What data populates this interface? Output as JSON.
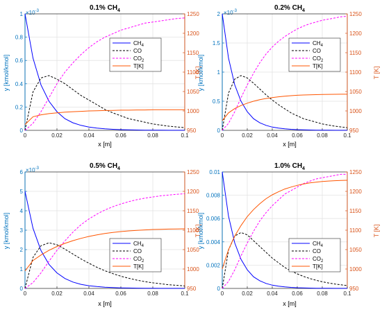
{
  "chart_data": [
    {
      "type": "line",
      "title": "0.1% CH",
      "title_sub": "4",
      "xlabel": "x [m]",
      "ylabel_left": "y [kmol/kmol]",
      "ylabel_right": "T [K]",
      "y_exponent": "×10",
      "y_exponent_power": "-3",
      "xlim": [
        0,
        0.1
      ],
      "ylim_left": [
        0,
        1
      ],
      "ylim_right": [
        950,
        1250
      ],
      "x_ticks": [
        "0",
        "0.02",
        "0.04",
        "0.06",
        "0.08",
        "0.1"
      ],
      "y_ticks_left": [
        "0",
        "0.2",
        "0.4",
        "0.6",
        "0.8",
        "1"
      ],
      "y_ticks_right": [
        "950",
        "1000",
        "1050",
        "1100",
        "1150",
        "1200",
        "1250"
      ],
      "legend_position": "middle-right",
      "x": [
        0,
        0.005,
        0.01,
        0.015,
        0.02,
        0.025,
        0.03,
        0.035,
        0.04,
        0.045,
        0.05,
        0.055,
        0.06,
        0.065,
        0.07,
        0.075,
        0.08,
        0.085,
        0.09,
        0.095,
        0.1
      ],
      "series": [
        {
          "name": "CH4",
          "color": "#0000ff",
          "dash": "solid",
          "axis": "left",
          "values": [
            1.0,
            0.62,
            0.39,
            0.25,
            0.16,
            0.1,
            0.065,
            0.043,
            0.028,
            0.019,
            0.013,
            0.009,
            0.006,
            0.004,
            0.003,
            0.002,
            0.0015,
            0.001,
            0.0007,
            0.0005,
            0.0003
          ]
        },
        {
          "name": "CO",
          "color": "#000000",
          "dash": "dashed",
          "axis": "left",
          "values": [
            0.0,
            0.33,
            0.45,
            0.47,
            0.44,
            0.4,
            0.35,
            0.3,
            0.26,
            0.22,
            0.18,
            0.15,
            0.125,
            0.1,
            0.085,
            0.07,
            0.055,
            0.045,
            0.036,
            0.029,
            0.023
          ]
        },
        {
          "name": "CO2",
          "color": "#ff00ff",
          "dash": "dashed",
          "axis": "left",
          "values": [
            0.0,
            0.06,
            0.16,
            0.28,
            0.4,
            0.5,
            0.58,
            0.65,
            0.71,
            0.76,
            0.8,
            0.83,
            0.86,
            0.88,
            0.9,
            0.92,
            0.93,
            0.94,
            0.95,
            0.96,
            0.965
          ]
        },
        {
          "name": "T[K]",
          "color": "#ff5500",
          "dash": "solid",
          "axis": "right",
          "values": [
            965,
            985,
            990,
            993,
            995,
            997,
            998,
            999,
            1000,
            1000.5,
            1001,
            1001.5,
            1002,
            1002,
            1002.5,
            1002.5,
            1003,
            1003,
            1003,
            1003,
            1003
          ]
        }
      ]
    },
    {
      "type": "line",
      "title": "0.2% CH",
      "title_sub": "4",
      "xlabel": "x [m]",
      "ylabel_left": "y [kmol/kmol]",
      "ylabel_right": "T [K]",
      "y_exponent": "×10",
      "y_exponent_power": "-3",
      "xlim": [
        0,
        0.1
      ],
      "ylim_left": [
        0,
        2
      ],
      "ylim_right": [
        950,
        1250
      ],
      "x_ticks": [
        "0",
        "0.02",
        "0.04",
        "0.06",
        "0.08",
        "0.1"
      ],
      "y_ticks_left": [
        "0",
        "0.5",
        "1",
        "1.5",
        "2"
      ],
      "y_ticks_right": [
        "950",
        "1000",
        "1050",
        "1100",
        "1150",
        "1200",
        "1250"
      ],
      "legend_position": "middle-right",
      "x": [
        0,
        0.005,
        0.01,
        0.015,
        0.02,
        0.025,
        0.03,
        0.035,
        0.04,
        0.045,
        0.05,
        0.055,
        0.06,
        0.065,
        0.07,
        0.075,
        0.08,
        0.085,
        0.09,
        0.095,
        0.1
      ],
      "series": [
        {
          "name": "CH4",
          "color": "#0000ff",
          "dash": "solid",
          "axis": "left",
          "values": [
            2.0,
            1.24,
            0.78,
            0.5,
            0.32,
            0.2,
            0.13,
            0.086,
            0.056,
            0.038,
            0.026,
            0.018,
            0.012,
            0.008,
            0.006,
            0.004,
            0.003,
            0.002,
            0.0014,
            0.001,
            0.0006
          ]
        },
        {
          "name": "CO",
          "color": "#000000",
          "dash": "dashed",
          "axis": "left",
          "values": [
            0.0,
            0.64,
            0.88,
            0.94,
            0.9,
            0.81,
            0.71,
            0.61,
            0.52,
            0.44,
            0.37,
            0.3,
            0.25,
            0.2,
            0.17,
            0.14,
            0.11,
            0.09,
            0.072,
            0.058,
            0.047
          ]
        },
        {
          "name": "CO2",
          "color": "#ff00ff",
          "dash": "dashed",
          "axis": "left",
          "values": [
            0.0,
            0.12,
            0.32,
            0.56,
            0.78,
            0.98,
            1.16,
            1.31,
            1.43,
            1.53,
            1.61,
            1.68,
            1.74,
            1.79,
            1.83,
            1.86,
            1.89,
            1.91,
            1.93,
            1.95,
            1.96
          ]
        },
        {
          "name": "T[K]",
          "color": "#ff5500",
          "dash": "solid",
          "axis": "right",
          "values": [
            975,
            995,
            1006,
            1014,
            1020,
            1025,
            1029,
            1032,
            1034.5,
            1036.5,
            1038,
            1039.3,
            1040.3,
            1041,
            1041.6,
            1042,
            1042.4,
            1042.7,
            1042.9,
            1043,
            1043
          ]
        }
      ]
    },
    {
      "type": "line",
      "title": "0.5% CH",
      "title_sub": "4",
      "xlabel": "x [m]",
      "ylabel_left": "y [kmol/kmol]",
      "ylabel_right": "T [K]",
      "y_exponent": "×10",
      "y_exponent_power": "-3",
      "xlim": [
        0,
        0.1
      ],
      "ylim_left": [
        0,
        6
      ],
      "ylim_right": [
        950,
        1250
      ],
      "x_ticks": [
        "0",
        "0.02",
        "0.04",
        "0.06",
        "0.08",
        "0.1"
      ],
      "y_ticks_left": [
        "0",
        "1",
        "2",
        "3",
        "4",
        "5",
        "6"
      ],
      "y_ticks_right": [
        "950",
        "1000",
        "1050",
        "1100",
        "1150",
        "1200",
        "1250"
      ],
      "legend_position": "bottom-right",
      "x": [
        0,
        0.005,
        0.01,
        0.015,
        0.02,
        0.025,
        0.03,
        0.035,
        0.04,
        0.045,
        0.05,
        0.055,
        0.06,
        0.065,
        0.07,
        0.075,
        0.08,
        0.085,
        0.09,
        0.095,
        0.1
      ],
      "series": [
        {
          "name": "CH4",
          "color": "#0000ff",
          "dash": "solid",
          "axis": "left",
          "values": [
            5.0,
            3.1,
            1.95,
            1.24,
            0.8,
            0.51,
            0.33,
            0.21,
            0.14,
            0.095,
            0.064,
            0.044,
            0.03,
            0.021,
            0.015,
            0.01,
            0.007,
            0.005,
            0.0035,
            0.0025,
            0.0018
          ]
        },
        {
          "name": "CO",
          "color": "#000000",
          "dash": "dashed",
          "axis": "left",
          "values": [
            0.0,
            1.6,
            2.2,
            2.35,
            2.25,
            2.02,
            1.77,
            1.52,
            1.3,
            1.09,
            0.91,
            0.76,
            0.63,
            0.52,
            0.43,
            0.35,
            0.29,
            0.24,
            0.19,
            0.16,
            0.13
          ]
        },
        {
          "name": "CO2",
          "color": "#ff00ff",
          "dash": "dashed",
          "axis": "left",
          "values": [
            0.0,
            0.3,
            0.8,
            1.4,
            1.96,
            2.45,
            2.9,
            3.28,
            3.58,
            3.83,
            4.04,
            4.21,
            4.35,
            4.47,
            4.57,
            4.65,
            4.71,
            4.77,
            4.81,
            4.85,
            4.88
          ]
        },
        {
          "name": "T[K]",
          "color": "#ff5500",
          "dash": "solid",
          "axis": "right",
          "values": [
            995,
            1022,
            1036,
            1048,
            1058,
            1066,
            1073,
            1079,
            1084,
            1088,
            1091.5,
            1094.3,
            1096.5,
            1098.3,
            1099.7,
            1100.8,
            1101.7,
            1102.3,
            1102.8,
            1103.2,
            1103.5
          ]
        }
      ]
    },
    {
      "type": "line",
      "title": "1.0% CH",
      "title_sub": "4",
      "xlabel": "x [m]",
      "ylabel_left": "y [kmol/kmol]",
      "ylabel_right": "T [K]",
      "xlim": [
        0,
        0.1
      ],
      "ylim_left": [
        0,
        0.01
      ],
      "ylim_right": [
        950,
        1250
      ],
      "x_ticks": [
        "0",
        "0.02",
        "0.04",
        "0.06",
        "0.08",
        "0.1"
      ],
      "y_ticks_left": [
        "0",
        "0.002",
        "0.004",
        "0.006",
        "0.008",
        "0.01"
      ],
      "y_ticks_right": [
        "950",
        "1000",
        "1050",
        "1100",
        "1150",
        "1200",
        "1250"
      ],
      "legend_position": "bottom-right",
      "x": [
        0,
        0.005,
        0.01,
        0.015,
        0.02,
        0.025,
        0.03,
        0.035,
        0.04,
        0.045,
        0.05,
        0.055,
        0.06,
        0.065,
        0.07,
        0.075,
        0.08,
        0.085,
        0.09,
        0.095,
        0.1
      ],
      "series": [
        {
          "name": "CH4",
          "color": "#0000ff",
          "dash": "solid",
          "axis": "left",
          "values": [
            0.01,
            0.0062,
            0.0039,
            0.0025,
            0.0016,
            0.001,
            0.00066,
            0.00043,
            0.00028,
            0.00019,
            0.00013,
            9e-05,
            6e-05,
            4e-05,
            3e-05,
            2e-05,
            1.5e-05,
            1e-05,
            7e-06,
            5e-06,
            4e-06
          ]
        },
        {
          "name": "CO",
          "color": "#000000",
          "dash": "dashed",
          "axis": "left",
          "values": [
            0.0,
            0.0033,
            0.0045,
            0.0048,
            0.0046,
            0.0041,
            0.0036,
            0.0031,
            0.0026,
            0.0022,
            0.0018,
            0.0015,
            0.00125,
            0.00103,
            0.00085,
            0.0007,
            0.00057,
            0.00047,
            0.00038,
            0.00031,
            0.00025
          ]
        },
        {
          "name": "CO2",
          "color": "#ff00ff",
          "dash": "dashed",
          "axis": "left",
          "values": [
            0.0,
            0.0006,
            0.0016,
            0.0028,
            0.0039,
            0.0049,
            0.0058,
            0.0065,
            0.0071,
            0.0076,
            0.0081,
            0.0084,
            0.0087,
            0.009,
            0.0092,
            0.0094,
            0.0095,
            0.0096,
            0.0097,
            0.0098,
            0.0098
          ]
        },
        {
          "name": "T[K]",
          "color": "#ff5500",
          "dash": "solid",
          "axis": "right",
          "values": [
            1000,
            1050,
            1085,
            1112,
            1135,
            1153,
            1168,
            1181,
            1191,
            1199,
            1206,
            1211,
            1215.5,
            1219,
            1221.7,
            1223.8,
            1225.4,
            1226.6,
            1227.5,
            1228.1,
            1228.5
          ]
        }
      ]
    }
  ]
}
